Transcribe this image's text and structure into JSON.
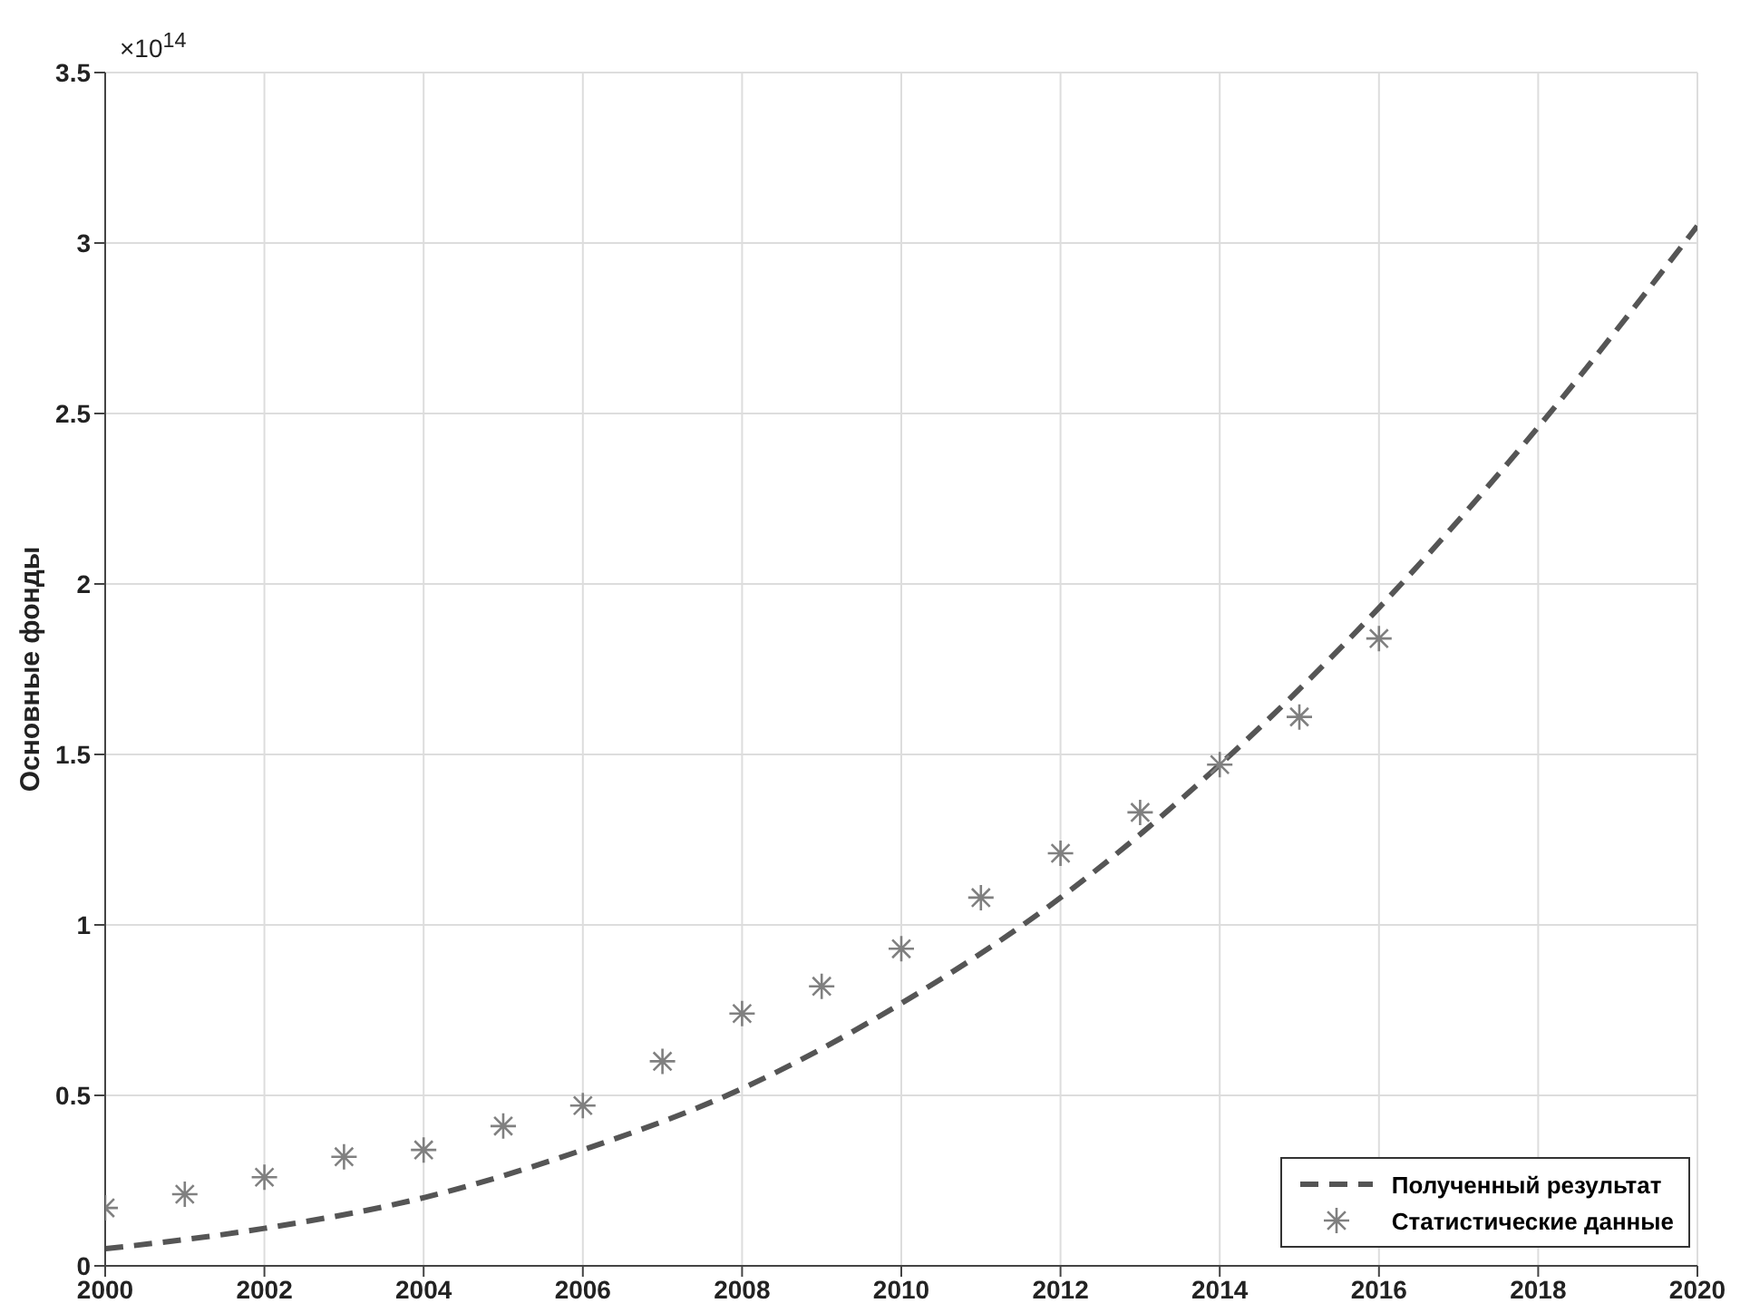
{
  "chart_data": {
    "type": "line",
    "ylabel": "Основные фонды",
    "annotations": [
      "×10$^{14}$"
    ],
    "xlim": [
      2000,
      2020
    ],
    "xticks": [
      2000,
      2002,
      2004,
      2006,
      2008,
      2010,
      2012,
      2014,
      2016,
      2018,
      2020
    ],
    "ylim": [
      0,
      3.5
    ],
    "yticks": [
      0,
      0.5,
      1,
      1.5,
      2,
      2.5,
      3,
      3.5
    ],
    "grid": true,
    "legend": "bottom right",
    "series": [
      {
        "name": "Полученный результат",
        "type": "line",
        "line_style": "dashed",
        "marker": "none",
        "color": "#555555",
        "x": [
          2000,
          2002,
          2004,
          2006,
          2008,
          2010,
          2012,
          2014,
          2016,
          2018,
          2020
        ],
        "values": [
          0.05,
          0.11,
          0.2,
          0.34,
          0.52,
          0.77,
          1.08,
          1.47,
          1.93,
          2.46,
          3.05
        ]
      },
      {
        "name": "Статистические данные",
        "type": "scatter",
        "marker": "cross",
        "color": "#808080",
        "x": [
          2000,
          2001,
          2002,
          2003,
          2004,
          2005,
          2006,
          2007,
          2008,
          2009,
          2010,
          2011,
          2012,
          2013,
          2014,
          2015,
          2016
        ],
        "values": [
          0.17,
          0.21,
          0.26,
          0.32,
          0.34,
          0.41,
          0.47,
          0.6,
          0.74,
          0.82,
          0.93,
          1.08,
          1.21,
          1.33,
          1.47,
          1.61,
          1.84
        ]
      }
    ]
  }
}
